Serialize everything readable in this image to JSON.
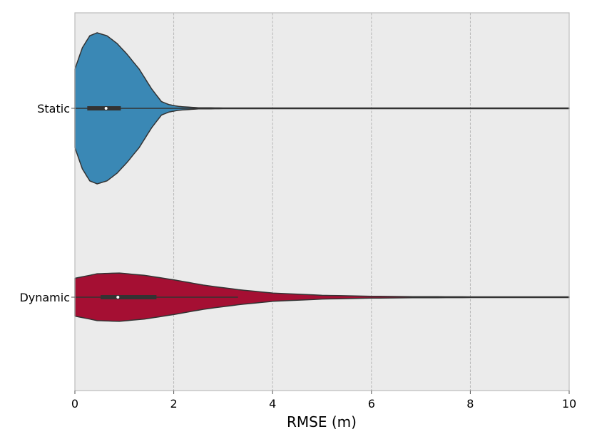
{
  "chart_data": {
    "type": "violin",
    "orientation": "horizontal",
    "xlabel": "RMSE (m)",
    "ylabel": "",
    "xlim": [
      0,
      10
    ],
    "xticks": [
      "0",
      "2",
      "4",
      "6",
      "8",
      "10"
    ],
    "grid": "x-only, dashed",
    "background": "#ebebeb",
    "series": [
      {
        "name": "Static",
        "color": "#3a88b5",
        "range": [
          0,
          10
        ],
        "box_q1": 0.25,
        "box_median": 0.63,
        "box_q3": 0.93,
        "whisker_high": 10,
        "density_profile": [
          [
            0.0,
            0.52
          ],
          [
            0.15,
            0.8
          ],
          [
            0.3,
            0.96
          ],
          [
            0.45,
            1.0
          ],
          [
            0.65,
            0.96
          ],
          [
            0.85,
            0.86
          ],
          [
            1.05,
            0.72
          ],
          [
            1.3,
            0.52
          ],
          [
            1.55,
            0.26
          ],
          [
            1.75,
            0.09
          ],
          [
            1.9,
            0.05
          ],
          [
            2.1,
            0.025
          ],
          [
            2.5,
            0.008
          ],
          [
            3.0,
            0.005
          ],
          [
            10.0,
            0.005
          ]
        ]
      },
      {
        "name": "Dynamic",
        "color": "#a50f33",
        "range": [
          0,
          10
        ],
        "box_q1": 0.52,
        "box_median": 0.87,
        "box_q3": 1.65,
        "whisker_high": 3.3,
        "density_profile": [
          [
            0.0,
            0.25
          ],
          [
            0.45,
            0.31
          ],
          [
            0.9,
            0.32
          ],
          [
            1.4,
            0.29
          ],
          [
            2.0,
            0.23
          ],
          [
            2.6,
            0.16
          ],
          [
            3.3,
            0.1
          ],
          [
            4.0,
            0.055
          ],
          [
            5.0,
            0.025
          ],
          [
            6.0,
            0.012
          ],
          [
            7.0,
            0.007
          ],
          [
            8.0,
            0.005
          ],
          [
            10.0,
            0.005
          ]
        ]
      }
    ]
  }
}
